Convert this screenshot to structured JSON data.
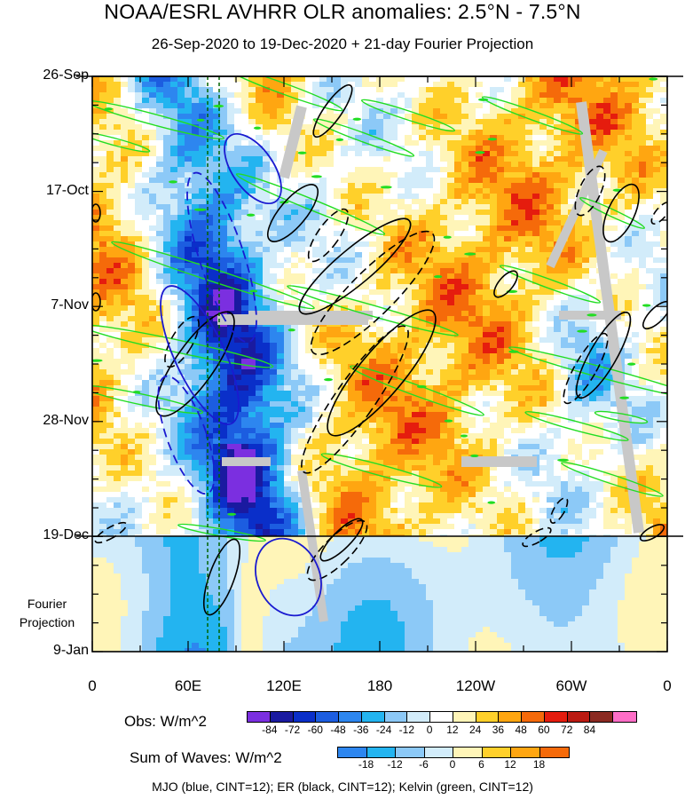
{
  "chart_data": {
    "type": "heatmap",
    "title": "NOAA/ESRL AVHRR OLR anomalies: 2.5°N - 7.5°N",
    "subtitle": "26-Sep-2020 to 19-Dec-2020 + 21-day Fourier Projection",
    "x_axis": {
      "range": [
        "0",
        "0"
      ],
      "tick_labels": [
        "0",
        "60E",
        "120E",
        "180",
        "120W",
        "60W",
        "0"
      ]
    },
    "y_axis": {
      "range": [
        "26-Sep",
        "9-Jan"
      ],
      "tick_labels": [
        "26-Sep",
        "17-Oct",
        "7-Nov",
        "28-Nov",
        "19-Dec",
        "9-Jan"
      ]
    },
    "projection_label": "Fourier Projection",
    "obs_colorbar": {
      "label": "Obs: W/m^2",
      "levels": [
        "-84",
        "-72",
        "-60",
        "-48",
        "-36",
        "-24",
        "-12",
        "0",
        "12",
        "24",
        "36",
        "48",
        "60",
        "72",
        "84"
      ],
      "colors": [
        "#7b2fe0",
        "#1a1aa0",
        "#0a2fc9",
        "#1c5de0",
        "#2d86ef",
        "#23b4f0",
        "#8cc9f7",
        "#d2ecfa",
        "#ffffff",
        "#fff5b8",
        "#ffd02a",
        "#ffa611",
        "#f56a0a",
        "#e51c0e",
        "#bb1a12",
        "#8b2a22",
        "#ff6ec7"
      ]
    },
    "waves_colorbar": {
      "label": "Sum of Waves: W/m^2",
      "levels": [
        "-18",
        "-12",
        "-6",
        "0",
        "6",
        "12",
        "18"
      ],
      "colors": [
        "#2d86ef",
        "#23b4f0",
        "#8cc9f7",
        "#d2ecfa",
        "#fff5b8",
        "#ffd02a",
        "#ffa611",
        "#f56a0a"
      ]
    },
    "contours_legend": "MJO (blue, CINT=12); ER (black, CINT=12); Kelvin (green, CINT=12)",
    "grid": false
  }
}
